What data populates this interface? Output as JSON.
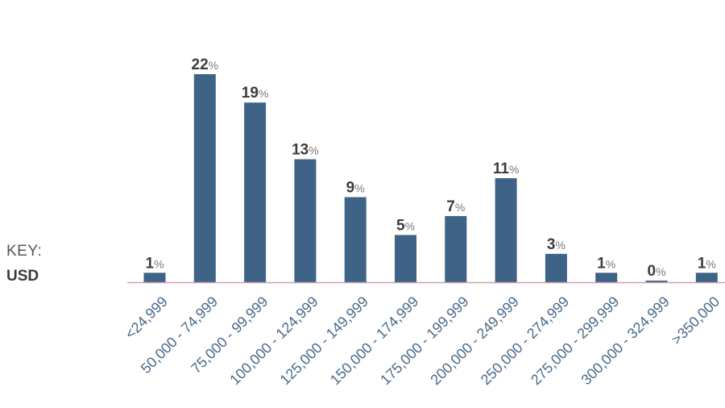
{
  "key": {
    "label": "KEY:",
    "unit": "USD"
  },
  "colors": {
    "bar": "#3f6386",
    "axis": "#c9a0ad",
    "tick_text": "#4a6a8a",
    "value_text": "#3d3d3d"
  },
  "chart_data": {
    "type": "bar",
    "categories": [
      "<24,999",
      "50,000 - 74,999",
      "75,000 - 99,999",
      "100,000 - 124,999",
      "125,000 - 149,999",
      "150,000 - 174,999",
      "175,000 - 199,999",
      "200,000 - 249,999",
      "250,000 - 274,999",
      "275,000 - 299,999",
      "300,000 - 324,999",
      ">350,000"
    ],
    "values": [
      1,
      22,
      19,
      13,
      9,
      5,
      7,
      11,
      3,
      1,
      0,
      1
    ],
    "value_suffix": "%",
    "title": "",
    "xlabel": "",
    "ylabel": "",
    "ylim": [
      0,
      22
    ],
    "grid": false,
    "legend": "none"
  }
}
